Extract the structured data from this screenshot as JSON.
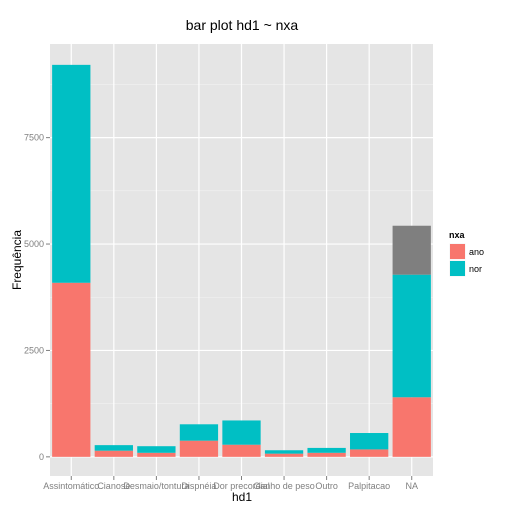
{
  "chart_data": {
    "type": "bar",
    "stacked": true,
    "title": "bar plot hd1 ~ nxa",
    "xlabel": "hd1",
    "ylabel": "Frequência",
    "categories": [
      "Assintomático",
      "Cianose",
      "Desmaio/tontura",
      "Dispnéia",
      "Dor precordial",
      "Ganho de peso",
      "Outro",
      "Palpitacao",
      "NA"
    ],
    "series": [
      {
        "name": "ano",
        "color": "#F8766D",
        "values": [
          4090,
          145,
          95,
          380,
          285,
          75,
          95,
          175,
          1400
        ]
      },
      {
        "name": "nor",
        "color": "#00BFC4",
        "values": [
          5120,
          130,
          155,
          385,
          570,
          80,
          115,
          385,
          2880
        ]
      },
      {
        "name": "",
        "color": "#7F7F7F",
        "values": [
          0,
          0,
          0,
          0,
          0,
          0,
          0,
          0,
          1150
        ]
      }
    ],
    "yticks": [
      0,
      2500,
      5000,
      7500
    ],
    "ylim": [
      -450,
      9700
    ],
    "grid": true,
    "legend": {
      "title": "nxa",
      "position": "right",
      "entries": [
        "ano",
        "nor"
      ]
    }
  }
}
